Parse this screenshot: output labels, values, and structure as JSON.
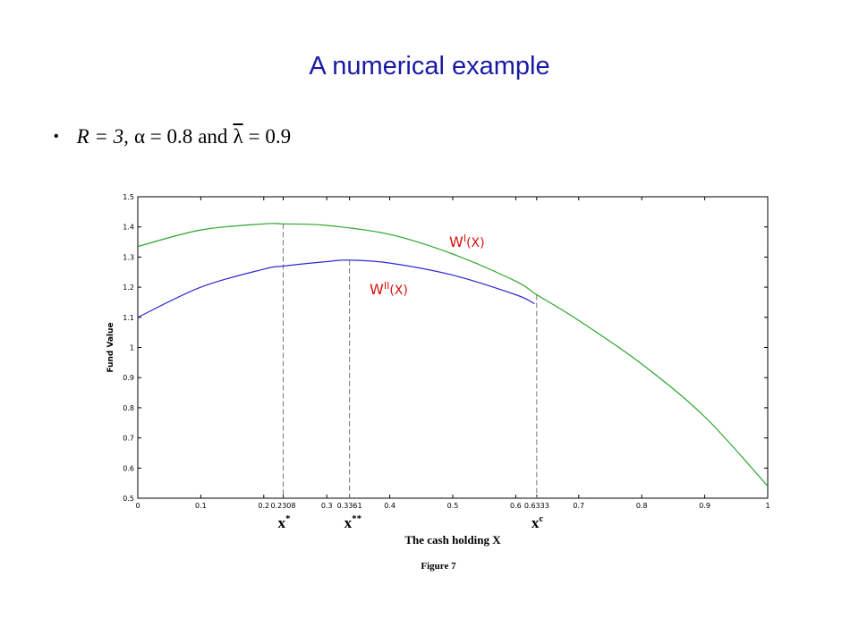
{
  "slide": {
    "title": "A numerical example",
    "bullet_symbol": "•",
    "params": {
      "R_label": "R = 3,",
      "alpha_label": "α = 0.8",
      "and": "and",
      "lambda_symbol": "λ",
      "lambda_value": "= 0.9"
    }
  },
  "chart_data": {
    "type": "line",
    "title": "",
    "xlabel": "The cash holding X",
    "ylabel": "Fund Value",
    "caption": "Figure 7",
    "xlim": [
      0,
      1
    ],
    "ylim": [
      0.5,
      1.5
    ],
    "x_ticks": [
      {
        "value": 0,
        "label": "0"
      },
      {
        "value": 0.1,
        "label": "0.1"
      },
      {
        "value": 0.2,
        "label": "0.2"
      },
      {
        "value": 0.2308,
        "label": "0.2308"
      },
      {
        "value": 0.3,
        "label": "0.3"
      },
      {
        "value": 0.3361,
        "label": "0.3361"
      },
      {
        "value": 0.4,
        "label": "0.4"
      },
      {
        "value": 0.5,
        "label": "0.5"
      },
      {
        "value": 0.6,
        "label": "0.6"
      },
      {
        "value": 0.6333,
        "label": "0.6333"
      },
      {
        "value": 0.7,
        "label": "0.7"
      },
      {
        "value": 0.8,
        "label": "0.8"
      },
      {
        "value": 0.9,
        "label": "0.9"
      },
      {
        "value": 1,
        "label": "1"
      }
    ],
    "y_ticks": [
      {
        "value": 0.5,
        "label": "0.5"
      },
      {
        "value": 0.6,
        "label": "0.6"
      },
      {
        "value": 0.7,
        "label": "0.7"
      },
      {
        "value": 0.8,
        "label": "0.8"
      },
      {
        "value": 0.9,
        "label": "0.9"
      },
      {
        "value": 1.0,
        "label": "1"
      },
      {
        "value": 1.1,
        "label": "1.1"
      },
      {
        "value": 1.2,
        "label": "1.2"
      },
      {
        "value": 1.3,
        "label": "1.3"
      },
      {
        "value": 1.4,
        "label": "1.4"
      },
      {
        "value": 1.5,
        "label": "1.5"
      }
    ],
    "grid": false,
    "series": [
      {
        "name": "W",
        "label_sup": "I",
        "label_tail": "(X)",
        "color": "#2aa52a",
        "x": [
          0,
          0.1,
          0.2,
          0.2308,
          0.3,
          0.4,
          0.5,
          0.6,
          0.6333,
          0.7,
          0.8,
          0.9,
          1.0
        ],
        "y": [
          1.335,
          1.39,
          1.41,
          1.41,
          1.405,
          1.375,
          1.31,
          1.22,
          1.175,
          1.09,
          0.945,
          0.77,
          0.54
        ]
      },
      {
        "name": "W",
        "label_sup": "II",
        "label_tail": "(X)",
        "color": "#2b2bd4",
        "x": [
          0,
          0.1,
          0.2,
          0.2308,
          0.3,
          0.3361,
          0.4,
          0.5,
          0.6,
          0.63
        ],
        "y": [
          1.1,
          1.2,
          1.26,
          1.27,
          1.285,
          1.29,
          1.28,
          1.24,
          1.175,
          1.145
        ]
      }
    ],
    "markers": [
      {
        "x": 0.2308,
        "y_top": 1.41,
        "label": "x",
        "sup": "*"
      },
      {
        "x": 0.3361,
        "y_top": 1.29,
        "label": "x",
        "sup": "**"
      },
      {
        "x": 0.6333,
        "y_top": 1.175,
        "label": "x",
        "sup": "c"
      }
    ],
    "annotation_color": "#e01010"
  }
}
